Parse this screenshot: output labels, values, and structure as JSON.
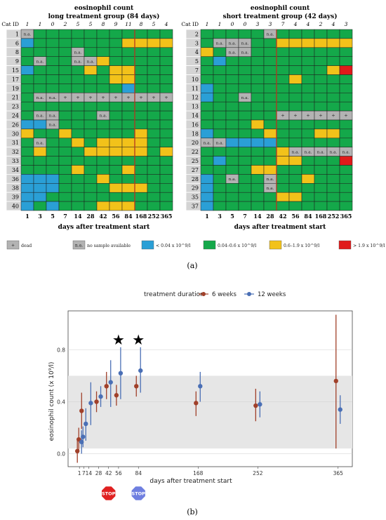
{
  "chart_data": [
    {
      "type": "heatmap",
      "title": "eosinophil count",
      "subtitle": "long treatment group (84 days)",
      "xlabel": "days after treatment start",
      "ylabel": "Cat ID",
      "days": [
        "1",
        "3",
        "5",
        "7",
        "14",
        "28",
        "42",
        "56",
        "84",
        "168",
        "252",
        "365"
      ],
      "header_counts": [
        "1",
        "1",
        "0",
        "2",
        "5",
        "5",
        "8",
        "9",
        "11",
        "8",
        "5",
        "4"
      ],
      "rows": [
        {
          "id": "1",
          "cells": [
            "na",
            "G",
            "G",
            "G",
            "G",
            "G",
            "G",
            "G",
            "G",
            "G",
            "G",
            "G"
          ]
        },
        {
          "id": "6",
          "cells": [
            "B",
            "G",
            "G",
            "G",
            "G",
            "G",
            "G",
            "G",
            "Y",
            "Y",
            "Y",
            "Y"
          ]
        },
        {
          "id": "8",
          "cells": [
            "G",
            "G",
            "G",
            "G",
            "na",
            "G",
            "G",
            "G",
            "G",
            "G",
            "G",
            "G"
          ]
        },
        {
          "id": "9",
          "cells": [
            "G",
            "na",
            "G",
            "G",
            "na",
            "na",
            "Y",
            "G",
            "G",
            "G",
            "G",
            "G"
          ]
        },
        {
          "id": "15",
          "cells": [
            "B",
            "G",
            "G",
            "G",
            "G",
            "Y",
            "G",
            "Y",
            "Y",
            "G",
            "G",
            "G"
          ]
        },
        {
          "id": "17",
          "cells": [
            "G",
            "G",
            "G",
            "G",
            "G",
            "G",
            "G",
            "Y",
            "Y",
            "G",
            "G",
            "G"
          ]
        },
        {
          "id": "19",
          "cells": [
            "G",
            "G",
            "G",
            "G",
            "G",
            "G",
            "G",
            "G",
            "B",
            "G",
            "G",
            "G"
          ]
        },
        {
          "id": "21",
          "cells": [
            "G",
            "na",
            "na",
            "+",
            "+",
            "+",
            "+",
            "+",
            "+",
            "+",
            "+",
            "+"
          ]
        },
        {
          "id": "23",
          "cells": [
            "G",
            "G",
            "G",
            "G",
            "G",
            "G",
            "G",
            "G",
            "G",
            "G",
            "G",
            "G"
          ]
        },
        {
          "id": "24",
          "cells": [
            "G",
            "na",
            "na",
            "G",
            "G",
            "G",
            "na",
            "G",
            "G",
            "G",
            "G",
            "G"
          ]
        },
        {
          "id": "26",
          "cells": [
            "B",
            "B",
            "na",
            "G",
            "G",
            "G",
            "G",
            "G",
            "G",
            "G",
            "G",
            "G"
          ]
        },
        {
          "id": "30",
          "cells": [
            "Y",
            "G",
            "G",
            "Y",
            "G",
            "G",
            "G",
            "G",
            "G",
            "Y",
            "G",
            "G"
          ]
        },
        {
          "id": "31",
          "cells": [
            "G",
            "na",
            "G",
            "G",
            "Y",
            "G",
            "Y",
            "Y",
            "Y",
            "Y",
            "G",
            "G"
          ]
        },
        {
          "id": "32",
          "cells": [
            "G",
            "Y",
            "G",
            "G",
            "G",
            "Y",
            "Y",
            "Y",
            "Y",
            "Y",
            "G",
            "Y"
          ]
        },
        {
          "id": "33",
          "cells": [
            "G",
            "G",
            "G",
            "G",
            "G",
            "G",
            "G",
            "G",
            "G",
            "G",
            "G",
            "G"
          ]
        },
        {
          "id": "34",
          "cells": [
            "G",
            "G",
            "G",
            "G",
            "Y",
            "G",
            "G",
            "G",
            "Y",
            "G",
            "G",
            "G"
          ]
        },
        {
          "id": "36",
          "cells": [
            "B",
            "B",
            "B",
            "G",
            "G",
            "G",
            "Y",
            "G",
            "G",
            "G",
            "G",
            "G"
          ]
        },
        {
          "id": "38",
          "cells": [
            "B",
            "B",
            "B",
            "G",
            "G",
            "G",
            "G",
            "Y",
            "Y",
            "Y",
            "G",
            "G"
          ]
        },
        {
          "id": "39",
          "cells": [
            "B",
            "B",
            "G",
            "G",
            "G",
            "G",
            "G",
            "G",
            "G",
            "G",
            "G",
            "G"
          ]
        },
        {
          "id": "40",
          "cells": [
            "B",
            "G",
            "B",
            "G",
            "G",
            "G",
            "Y",
            "Y",
            "Y",
            "G",
            "G",
            "G"
          ]
        }
      ]
    },
    {
      "type": "heatmap",
      "title": "eosinophil count",
      "subtitle": "short treatment group (42 days)",
      "xlabel": "days after treatment start",
      "ylabel": "",
      "days": [
        "1",
        "3",
        "5",
        "7",
        "14",
        "28",
        "42",
        "56",
        "84",
        "168",
        "252",
        "365"
      ],
      "header_counts": [
        "1",
        "1",
        "0",
        "0",
        "3",
        "3",
        "7",
        "4",
        "4",
        "2",
        "4",
        "3"
      ],
      "rows": [
        {
          "id": "2",
          "cells": [
            "G",
            "G",
            "G",
            "G",
            "G",
            "na",
            "G",
            "G",
            "G",
            "G",
            "G",
            "G"
          ]
        },
        {
          "id": "3",
          "cells": [
            "G",
            "na",
            "na",
            "na",
            "G",
            "G",
            "Y",
            "Y",
            "Y",
            "Y",
            "Y",
            "Y"
          ]
        },
        {
          "id": "4",
          "cells": [
            "Y",
            "G",
            "na",
            "na",
            "G",
            "G",
            "G",
            "G",
            "G",
            "G",
            "G",
            "G"
          ]
        },
        {
          "id": "5",
          "cells": [
            "G",
            "B",
            "G",
            "G",
            "G",
            "G",
            "G",
            "G",
            "G",
            "G",
            "G",
            "G"
          ]
        },
        {
          "id": "7",
          "cells": [
            "G",
            "G",
            "G",
            "G",
            "G",
            "G",
            "G",
            "G",
            "G",
            "G",
            "Y",
            "R"
          ]
        },
        {
          "id": "10",
          "cells": [
            "G",
            "G",
            "G",
            "G",
            "G",
            "G",
            "G",
            "Y",
            "G",
            "G",
            "G",
            "G"
          ]
        },
        {
          "id": "11",
          "cells": [
            "B",
            "G",
            "G",
            "G",
            "G",
            "G",
            "G",
            "G",
            "G",
            "G",
            "G",
            "G"
          ]
        },
        {
          "id": "12",
          "cells": [
            "B",
            "G",
            "G",
            "na",
            "G",
            "G",
            "G",
            "G",
            "G",
            "G",
            "G",
            "G"
          ]
        },
        {
          "id": "13",
          "cells": [
            "G",
            "G",
            "G",
            "G",
            "G",
            "G",
            "G",
            "G",
            "G",
            "G",
            "G",
            "G"
          ]
        },
        {
          "id": "14",
          "cells": [
            "G",
            "G",
            "G",
            "G",
            "G",
            "G",
            "+",
            "+",
            "+",
            "+",
            "+",
            "+"
          ]
        },
        {
          "id": "16",
          "cells": [
            "G",
            "G",
            "G",
            "G",
            "Y",
            "G",
            "G",
            "G",
            "G",
            "G",
            "G",
            "G"
          ]
        },
        {
          "id": "18",
          "cells": [
            "B",
            "G",
            "G",
            "G",
            "G",
            "Y",
            "G",
            "G",
            "G",
            "Y",
            "Y",
            "G"
          ]
        },
        {
          "id": "20",
          "cells": [
            "na",
            "na",
            "B",
            "B",
            "B",
            "B",
            "G",
            "G",
            "G",
            "G",
            "G",
            "G"
          ]
        },
        {
          "id": "22",
          "cells": [
            "G",
            "G",
            "G",
            "G",
            "G",
            "G",
            "Y",
            "na",
            "na",
            "na",
            "na",
            "na"
          ]
        },
        {
          "id": "25",
          "cells": [
            "G",
            "B",
            "G",
            "G",
            "G",
            "G",
            "Y",
            "Y",
            "G",
            "G",
            "G",
            "R"
          ]
        },
        {
          "id": "27",
          "cells": [
            "G",
            "G",
            "G",
            "G",
            "Y",
            "Y",
            "G",
            "G",
            "G",
            "G",
            "G",
            "G"
          ]
        },
        {
          "id": "28",
          "cells": [
            "B",
            "G",
            "na",
            "G",
            "G",
            "na",
            "G",
            "G",
            "Y",
            "G",
            "G",
            "G"
          ]
        },
        {
          "id": "29",
          "cells": [
            "B",
            "G",
            "G",
            "G",
            "G",
            "na",
            "G",
            "G",
            "G",
            "G",
            "G",
            "G"
          ]
        },
        {
          "id": "35",
          "cells": [
            "B",
            "G",
            "G",
            "G",
            "G",
            "G",
            "Y",
            "Y",
            "G",
            "G",
            "G",
            "G"
          ]
        },
        {
          "id": "37",
          "cells": [
            "B",
            "G",
            "G",
            "G",
            "G",
            "G",
            "G",
            "G",
            "G",
            "G",
            "G",
            "G"
          ]
        }
      ]
    },
    {
      "type": "scatter",
      "title": "",
      "legend_title": "treatment duration",
      "legend_position": "top",
      "xlabel": "days after treatment start",
      "ylabel": "eosinophil count (x 10⁹/l)",
      "xticks": [
        1,
        7,
        14,
        28,
        42,
        56,
        84,
        168,
        252,
        365
      ],
      "yticks": [
        "0.0",
        "0.4",
        "0.8"
      ],
      "ylim": [
        -0.1,
        1.1
      ],
      "reference_band": [
        0.04,
        0.6
      ],
      "significance_markers_at_day": [
        56,
        84
      ],
      "series": [
        {
          "name": "6 weeks",
          "color": "#a0402a",
          "points": [
            {
              "x": 1,
              "y": 0.02,
              "lo": -0.07,
              "hi": 0.1
            },
            {
              "x": 3,
              "y": 0.11,
              "lo": 0.01,
              "hi": 0.2
            },
            {
              "x": 7,
              "y": 0.33,
              "lo": 0.19,
              "hi": 0.47
            },
            {
              "x": 28,
              "y": 0.4,
              "lo": 0.32,
              "hi": 0.48
            },
            {
              "x": 42,
              "y": 0.52,
              "lo": 0.42,
              "hi": 0.63
            },
            {
              "x": 56,
              "y": 0.45,
              "lo": 0.37,
              "hi": 0.53
            },
            {
              "x": 84,
              "y": 0.52,
              "lo": 0.44,
              "hi": 0.6
            },
            {
              "x": 168,
              "y": 0.39,
              "lo": 0.29,
              "hi": 0.48
            },
            {
              "x": 252,
              "y": 0.37,
              "lo": 0.25,
              "hi": 0.5
            },
            {
              "x": 365,
              "y": 0.56,
              "lo": 0.04,
              "hi": 1.07
            }
          ]
        },
        {
          "name": "12 weeks",
          "color": "#4a6fb5",
          "points": [
            {
              "x": 1,
              "y": 0.09,
              "lo": 0.0,
              "hi": 0.18
            },
            {
              "x": 3,
              "y": 0.13,
              "lo": 0.05,
              "hi": 0.21
            },
            {
              "x": 7,
              "y": 0.23,
              "lo": 0.1,
              "hi": 0.35
            },
            {
              "x": 14,
              "y": 0.39,
              "lo": 0.22,
              "hi": 0.55
            },
            {
              "x": 28,
              "y": 0.44,
              "lo": 0.36,
              "hi": 0.52
            },
            {
              "x": 42,
              "y": 0.55,
              "lo": 0.36,
              "hi": 0.72
            },
            {
              "x": 56,
              "y": 0.62,
              "lo": 0.42,
              "hi": 0.82
            },
            {
              "x": 84,
              "y": 0.64,
              "lo": 0.47,
              "hi": 0.82
            },
            {
              "x": 168,
              "y": 0.52,
              "lo": 0.4,
              "hi": 0.63
            },
            {
              "x": 252,
              "y": 0.38,
              "lo": 0.28,
              "hi": 0.48
            },
            {
              "x": 365,
              "y": 0.34,
              "lo": 0.23,
              "hi": 0.45
            }
          ]
        }
      ]
    }
  ],
  "heatmap_legend": [
    {
      "key": "+",
      "swatch_label": "+",
      "text": "dead",
      "color": "#b3b3b3"
    },
    {
      "key": "na",
      "swatch_label": "n.a.",
      "text": "no sample available",
      "color": "#b3b3b3"
    },
    {
      "key": "B",
      "swatch_label": "",
      "text": "< 0.04 x 10^9/l",
      "color": "#2a9fd6"
    },
    {
      "key": "G",
      "swatch_label": "",
      "text": "0.04–0.6 x 10^9/l",
      "color": "#14a84a"
    },
    {
      "key": "Y",
      "swatch_label": "",
      "text": "0.6–1.9 x 10^9/l",
      "color": "#f2c21a"
    },
    {
      "key": "R",
      "swatch_label": "",
      "text": "> 1.9 x 10^9/l",
      "color": "#e01a1a"
    }
  ],
  "header_label": "Cat ID",
  "panel_a_label": "(a)",
  "panel_b_label": "(b)",
  "stop_signs": [
    {
      "text": "STOP",
      "color": "#e02020",
      "day": 42
    },
    {
      "text": "STOP",
      "color": "#6f7fe0",
      "day": 84
    }
  ],
  "star_glyph": "★"
}
